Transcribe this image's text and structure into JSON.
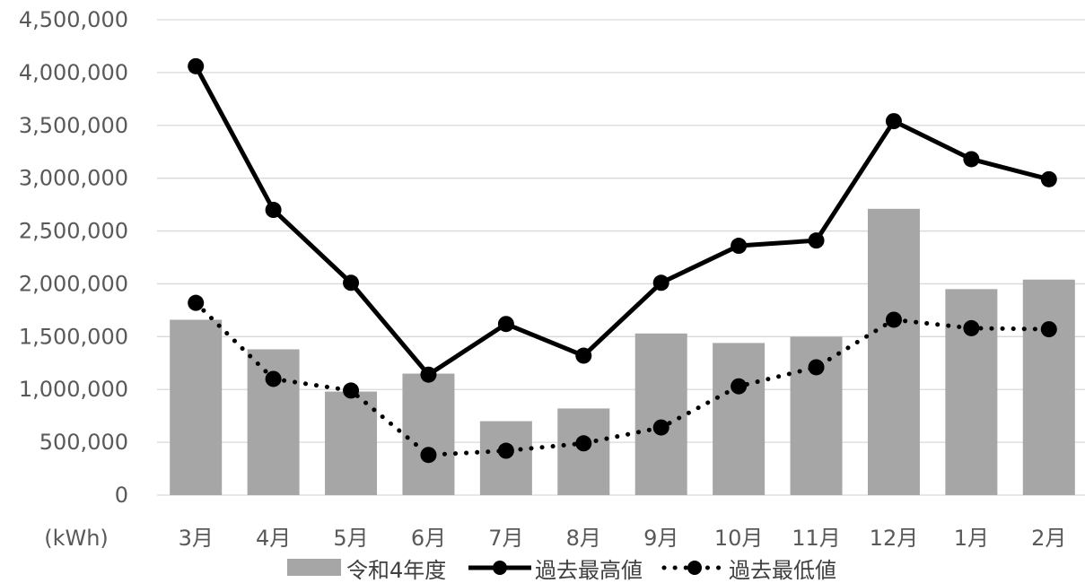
{
  "chart_data": {
    "type": "bar",
    "categories": [
      "3月",
      "4月",
      "5月",
      "6月",
      "7月",
      "8月",
      "9月",
      "10月",
      "11月",
      "12月",
      "1月",
      "2月"
    ],
    "unit_label": "(kWh)",
    "ylim": [
      0,
      4500000
    ],
    "y_ticks": [
      0,
      500000,
      1000000,
      1500000,
      2000000,
      2500000,
      3000000,
      3500000,
      4000000,
      4500000
    ],
    "y_tick_labels": [
      "0",
      "500,000",
      "1,000,000",
      "1,500,000",
      "2,000,000",
      "2,500,000",
      "3,000,000",
      "3,500,000",
      "4,000,000",
      "4,500,000"
    ],
    "grid": true,
    "legend_position": "bottom",
    "series": [
      {
        "name": "令和4年度",
        "kind": "bar",
        "color": "#a6a6a6",
        "values": [
          1660000,
          1380000,
          980000,
          1150000,
          700000,
          820000,
          1530000,
          1440000,
          1500000,
          2710000,
          1950000,
          2040000
        ]
      },
      {
        "name": "過去最高値",
        "kind": "line",
        "style": "solid",
        "color": "#000000",
        "values": [
          4060000,
          2700000,
          2010000,
          1140000,
          1620000,
          1320000,
          2010000,
          2360000,
          2410000,
          3540000,
          3180000,
          2990000
        ]
      },
      {
        "name": "過去最低値",
        "kind": "line",
        "style": "dotted",
        "color": "#000000",
        "values": [
          1820000,
          1100000,
          990000,
          380000,
          420000,
          490000,
          640000,
          1030000,
          1210000,
          1660000,
          1580000,
          1570000
        ]
      }
    ]
  }
}
